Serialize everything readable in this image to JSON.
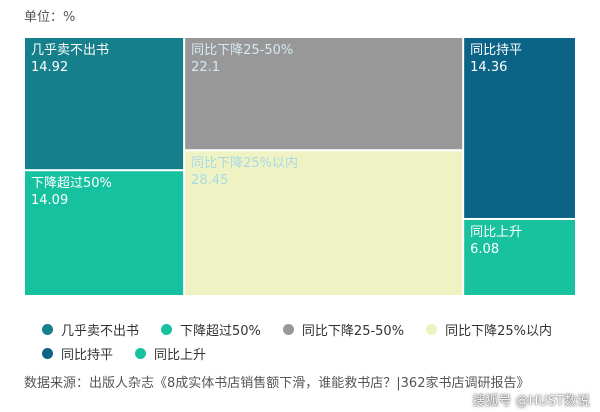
{
  "unit_label": "单位：%",
  "source_text": "数据来源：出版人杂志《8成实体书店销售额下滑，谁能救书店？|362家书店调研报告》",
  "watermark": "搜狐号 @HUST数说",
  "chart_data": {
    "type": "treemap",
    "cells": [
      {
        "name": "几乎卖不出书",
        "value": 14.92,
        "color": "#167f8c",
        "label_color": "#ffffff"
      },
      {
        "name": "下降超过50%",
        "value": 14.09,
        "color": "#16c1a0",
        "label_color": "#ffffff"
      },
      {
        "name": "同比下降25-50%",
        "value": 22.1,
        "color": "#989898",
        "label_color": "#d6e8f2"
      },
      {
        "name": "同比下降25%以内",
        "value": 28.45,
        "color": "#eff3c3",
        "label_color": "#a8d9e6"
      },
      {
        "name": "同比持平",
        "value": 14.36,
        "color": "#0b6386",
        "label_color": "#ffffff"
      },
      {
        "name": "同比上升",
        "value": 6.08,
        "color": "#18c29f",
        "label_color": "#ffffff"
      }
    ],
    "legend": {
      "position": "bottom"
    }
  }
}
